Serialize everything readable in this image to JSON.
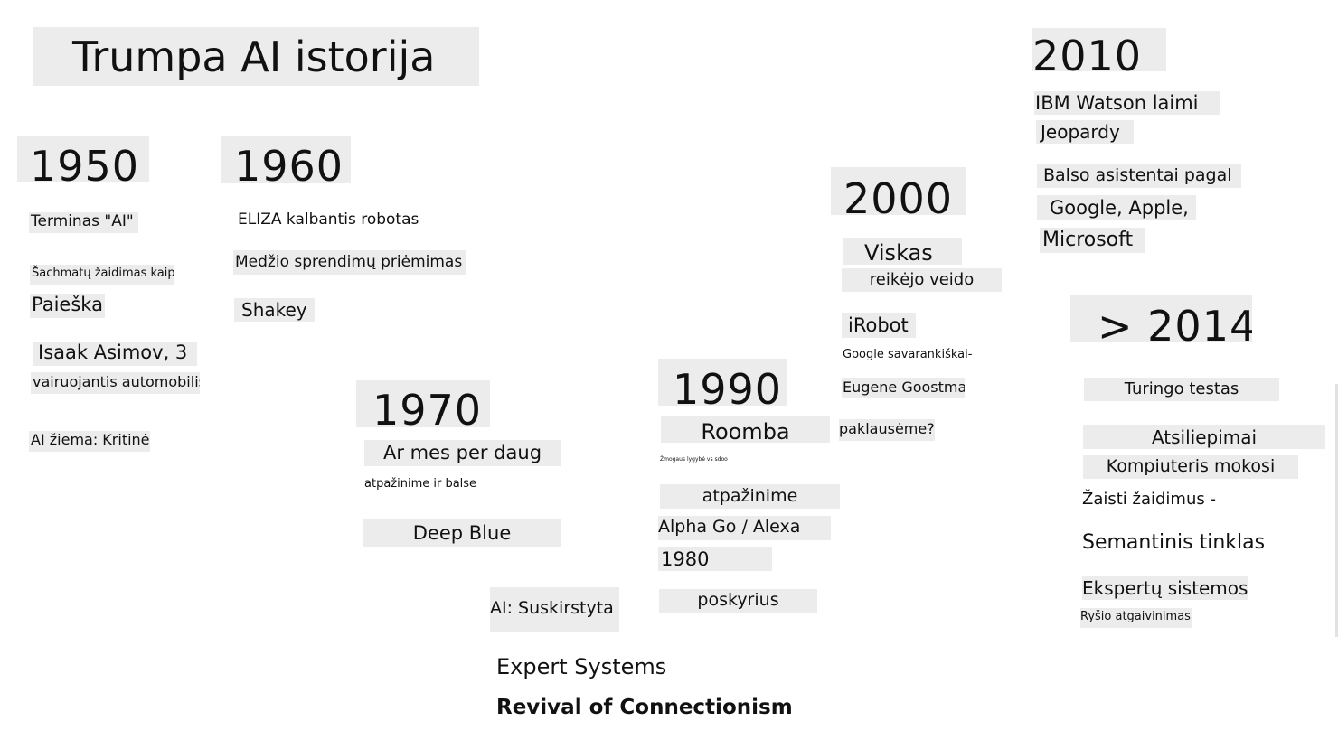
{
  "title": "Trumpa AI istorija",
  "eras": {
    "y1950": {
      "year": "1950",
      "items": [
        "Terminas \"AI\"",
        "Šachmatų žaidimas kaip",
        "Paieška",
        "Isaak Asimov, 3",
        "vairuojantis automobilis",
        "AI žiema: Kritinė"
      ]
    },
    "y1960": {
      "year": "1960",
      "items": [
        "ELIZA kalbantis robotas",
        "Medžio sprendimų priėmimas",
        "Shakey"
      ]
    },
    "y1970": {
      "year": "1970",
      "items": [
        "Ar mes per daug",
        "atpažinime ir balse",
        "Deep Blue"
      ]
    },
    "center": {
      "items": [
        "AI: Suskirstyta į",
        "Expert Systems",
        "Revival of Connectionism"
      ]
    },
    "y1990": {
      "year": "1990",
      "items": [
        "Roomba",
        "Žmogaus lygybė vs sdoo",
        "atpažinime",
        "Alpha Go / Alexa",
        "1980",
        "poskyrius"
      ]
    },
    "y2000": {
      "year": "2000",
      "items": [
        "Viskas",
        "reikėjo veido",
        "iRobot",
        "Google savarankiškai-",
        "Eugene Goostman",
        "paklausėme?"
      ]
    },
    "y2010": {
      "year": "2010",
      "items": [
        "IBM Watson laimi",
        "Jeopardy",
        "Balso asistentai pagal",
        "Google, Apple,",
        "Microsoft"
      ]
    },
    "y2014": {
      "year": "> 2014",
      "items": [
        "Turingo testas",
        "Atsiliepimai",
        "Kompiuteris mokosi",
        "Žaisti žaidimus -",
        "Semantinis tinklas",
        "Ekspertų sistemos",
        "Ryšio atgaivinimas"
      ]
    }
  }
}
